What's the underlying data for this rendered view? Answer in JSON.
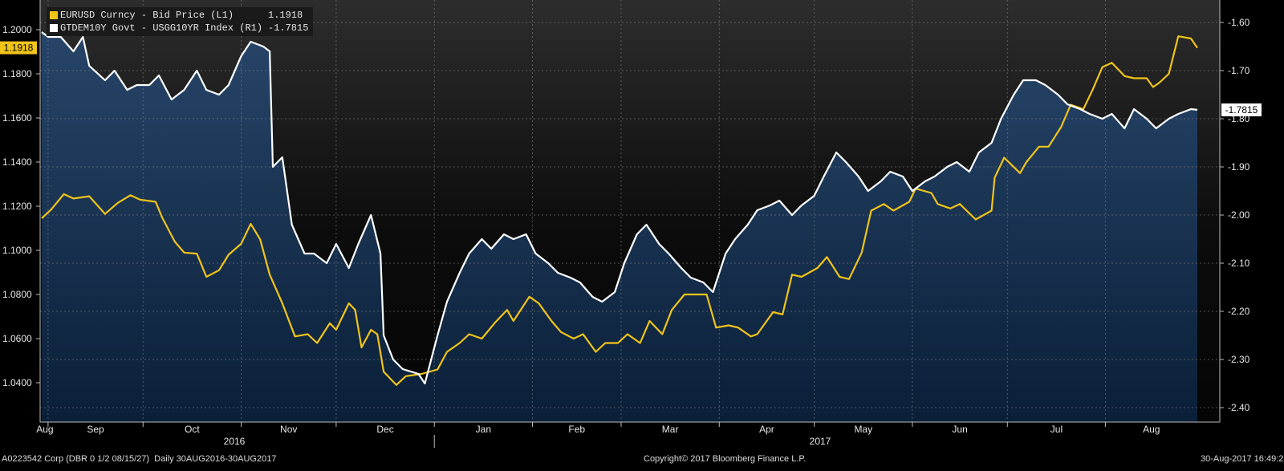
{
  "chart_data": {
    "type": "line",
    "x_start": "2016-08-30",
    "x_end": "2017-08-30",
    "month_labels": [
      "Aug",
      "Sep",
      "Oct",
      "Nov",
      "Dec",
      "Jan",
      "Feb",
      "Mar",
      "Apr",
      "May",
      "Jun",
      "Jul",
      "Aug"
    ],
    "year_labels": [
      "2016",
      "2017"
    ],
    "left_axis": {
      "ylim": [
        1.03,
        1.21
      ],
      "ticks": [
        "1.2000",
        "1.1800",
        "1.1600",
        "1.1400",
        "1.1200",
        "1.1000",
        "1.0800",
        "1.0600",
        "1.0400"
      ]
    },
    "right_axis": {
      "ylim": [
        -2.4,
        -1.55
      ],
      "ticks": [
        "-1.60",
        "-1.70",
        "-1.80",
        "-1.90",
        "-2.00",
        "-2.10",
        "-2.20",
        "-2.30",
        "-2.40"
      ]
    },
    "series": [
      {
        "name": "EURUSD Curncy - Bid Price (L1)",
        "axis": "left",
        "color": "#f0c419",
        "last_value": "1.1918",
        "points": [
          [
            "2016-08-30",
            1.1145
          ],
          [
            "2016-09-02",
            1.1185
          ],
          [
            "2016-09-06",
            1.1255
          ],
          [
            "2016-09-09",
            1.1235
          ],
          [
            "2016-09-14",
            1.1245
          ],
          [
            "2016-09-19",
            1.1165
          ],
          [
            "2016-09-23",
            1.1215
          ],
          [
            "2016-09-27",
            1.125
          ],
          [
            "2016-09-30",
            1.123
          ],
          [
            "2016-10-05",
            1.122
          ],
          [
            "2016-10-07",
            1.115
          ],
          [
            "2016-10-11",
            1.104
          ],
          [
            "2016-10-14",
            1.099
          ],
          [
            "2016-10-18",
            1.0985
          ],
          [
            "2016-10-21",
            1.088
          ],
          [
            "2016-10-25",
            1.091
          ],
          [
            "2016-10-28",
            1.098
          ],
          [
            "2016-11-01",
            1.103
          ],
          [
            "2016-11-04",
            1.112
          ],
          [
            "2016-11-07",
            1.105
          ],
          [
            "2016-11-10",
            1.089
          ],
          [
            "2016-11-14",
            1.076
          ],
          [
            "2016-11-18",
            1.061
          ],
          [
            "2016-11-22",
            1.062
          ],
          [
            "2016-11-25",
            1.058
          ],
          [
            "2016-11-29",
            1.067
          ],
          [
            "2016-12-01",
            1.064
          ],
          [
            "2016-12-05",
            1.076
          ],
          [
            "2016-12-07",
            1.073
          ],
          [
            "2016-12-09",
            1.056
          ],
          [
            "2016-12-12",
            1.064
          ],
          [
            "2016-12-14",
            1.062
          ],
          [
            "2016-12-16",
            1.045
          ],
          [
            "2016-12-20",
            1.039
          ],
          [
            "2016-12-23",
            1.043
          ],
          [
            "2016-12-28",
            1.044
          ],
          [
            "2017-01-02",
            1.046
          ],
          [
            "2017-01-05",
            1.054
          ],
          [
            "2017-01-09",
            1.058
          ],
          [
            "2017-01-12",
            1.062
          ],
          [
            "2017-01-16",
            1.06
          ],
          [
            "2017-01-20",
            1.067
          ],
          [
            "2017-01-24",
            1.073
          ],
          [
            "2017-01-26",
            1.068
          ],
          [
            "2017-01-31",
            1.079
          ],
          [
            "2017-02-03",
            1.076
          ],
          [
            "2017-02-07",
            1.068
          ],
          [
            "2017-02-10",
            1.063
          ],
          [
            "2017-02-14",
            1.06
          ],
          [
            "2017-02-17",
            1.062
          ],
          [
            "2017-02-21",
            1.054
          ],
          [
            "2017-02-24",
            1.058
          ],
          [
            "2017-02-28",
            1.058
          ],
          [
            "2017-03-03",
            1.062
          ],
          [
            "2017-03-07",
            1.058
          ],
          [
            "2017-03-10",
            1.068
          ],
          [
            "2017-03-14",
            1.062
          ],
          [
            "2017-03-17",
            1.073
          ],
          [
            "2017-03-21",
            1.08
          ],
          [
            "2017-03-24",
            1.08
          ],
          [
            "2017-03-28",
            1.08
          ],
          [
            "2017-03-31",
            1.065
          ],
          [
            "2017-04-04",
            1.066
          ],
          [
            "2017-04-07",
            1.065
          ],
          [
            "2017-04-11",
            1.061
          ],
          [
            "2017-04-13",
            1.062
          ],
          [
            "2017-04-18",
            1.072
          ],
          [
            "2017-04-21",
            1.071
          ],
          [
            "2017-04-24",
            1.089
          ],
          [
            "2017-04-27",
            1.088
          ],
          [
            "2017-05-02",
            1.092
          ],
          [
            "2017-05-05",
            1.097
          ],
          [
            "2017-05-09",
            1.088
          ],
          [
            "2017-05-12",
            1.087
          ],
          [
            "2017-05-16",
            1.099
          ],
          [
            "2017-05-19",
            1.118
          ],
          [
            "2017-05-23",
            1.121
          ],
          [
            "2017-05-26",
            1.118
          ],
          [
            "2017-05-31",
            1.122
          ],
          [
            "2017-06-02",
            1.128
          ],
          [
            "2017-06-07",
            1.126
          ],
          [
            "2017-06-09",
            1.121
          ],
          [
            "2017-06-13",
            1.119
          ],
          [
            "2017-06-16",
            1.121
          ],
          [
            "2017-06-21",
            1.114
          ],
          [
            "2017-06-26",
            1.118
          ],
          [
            "2017-06-27",
            1.133
          ],
          [
            "2017-06-30",
            1.142
          ],
          [
            "2017-07-05",
            1.135
          ],
          [
            "2017-07-07",
            1.14
          ],
          [
            "2017-07-11",
            1.147
          ],
          [
            "2017-07-14",
            1.147
          ],
          [
            "2017-07-18",
            1.156
          ],
          [
            "2017-07-21",
            1.166
          ],
          [
            "2017-07-25",
            1.164
          ],
          [
            "2017-07-28",
            1.173
          ],
          [
            "2017-07-31",
            1.183
          ],
          [
            "2017-08-03",
            1.185
          ],
          [
            "2017-08-07",
            1.179
          ],
          [
            "2017-08-10",
            1.178
          ],
          [
            "2017-08-14",
            1.178
          ],
          [
            "2017-08-16",
            1.174
          ],
          [
            "2017-08-18",
            1.176
          ],
          [
            "2017-08-21",
            1.18
          ],
          [
            "2017-08-24",
            1.197
          ],
          [
            "2017-08-28",
            1.196
          ],
          [
            "2017-08-30",
            1.1918
          ]
        ]
      },
      {
        "name": "GTDEM10Y Govt - USGG10YR Index (R1)",
        "axis": "right",
        "color": "#ffffff",
        "last_value": "-1.7815",
        "points": [
          [
            "2016-08-30",
            -1.62
          ],
          [
            "2016-09-01",
            -1.63
          ],
          [
            "2016-09-05",
            -1.63
          ],
          [
            "2016-09-09",
            -1.66
          ],
          [
            "2016-09-12",
            -1.63
          ],
          [
            "2016-09-14",
            -1.69
          ],
          [
            "2016-09-19",
            -1.72
          ],
          [
            "2016-09-22",
            -1.7
          ],
          [
            "2016-09-26",
            -1.74
          ],
          [
            "2016-09-29",
            -1.73
          ],
          [
            "2016-10-03",
            -1.73
          ],
          [
            "2016-10-06",
            -1.71
          ],
          [
            "2016-10-10",
            -1.76
          ],
          [
            "2016-10-14",
            -1.74
          ],
          [
            "2016-10-18",
            -1.7
          ],
          [
            "2016-10-21",
            -1.74
          ],
          [
            "2016-10-25",
            -1.75
          ],
          [
            "2016-10-28",
            -1.73
          ],
          [
            "2016-11-01",
            -1.67
          ],
          [
            "2016-11-04",
            -1.64
          ],
          [
            "2016-11-08",
            -1.65
          ],
          [
            "2016-11-10",
            -1.66
          ],
          [
            "2016-11-11",
            -1.9
          ],
          [
            "2016-11-14",
            -1.88
          ],
          [
            "2016-11-17",
            -2.02
          ],
          [
            "2016-11-21",
            -2.08
          ],
          [
            "2016-11-24",
            -2.08
          ],
          [
            "2016-11-28",
            -2.1
          ],
          [
            "2016-12-01",
            -2.06
          ],
          [
            "2016-12-05",
            -2.11
          ],
          [
            "2016-12-08",
            -2.06
          ],
          [
            "2016-12-12",
            -2.0
          ],
          [
            "2016-12-15",
            -2.08
          ],
          [
            "2016-12-16",
            -2.25
          ],
          [
            "2016-12-19",
            -2.3
          ],
          [
            "2016-12-22",
            -2.32
          ],
          [
            "2016-12-27",
            -2.33
          ],
          [
            "2016-12-29",
            -2.35
          ],
          [
            "2017-01-02",
            -2.25
          ],
          [
            "2017-01-05",
            -2.18
          ],
          [
            "2017-01-09",
            -2.12
          ],
          [
            "2017-01-12",
            -2.08
          ],
          [
            "2017-01-16",
            -2.05
          ],
          [
            "2017-01-19",
            -2.07
          ],
          [
            "2017-01-23",
            -2.04
          ],
          [
            "2017-01-26",
            -2.05
          ],
          [
            "2017-01-30",
            -2.04
          ],
          [
            "2017-02-02",
            -2.08
          ],
          [
            "2017-02-06",
            -2.1
          ],
          [
            "2017-02-09",
            -2.12
          ],
          [
            "2017-02-13",
            -2.13
          ],
          [
            "2017-02-16",
            -2.14
          ],
          [
            "2017-02-20",
            -2.17
          ],
          [
            "2017-02-23",
            -2.18
          ],
          [
            "2017-02-27",
            -2.16
          ],
          [
            "2017-03-02",
            -2.1
          ],
          [
            "2017-03-06",
            -2.04
          ],
          [
            "2017-03-09",
            -2.02
          ],
          [
            "2017-03-13",
            -2.06
          ],
          [
            "2017-03-16",
            -2.08
          ],
          [
            "2017-03-20",
            -2.11
          ],
          [
            "2017-03-23",
            -2.13
          ],
          [
            "2017-03-27",
            -2.14
          ],
          [
            "2017-03-30",
            -2.16
          ],
          [
            "2017-04-03",
            -2.08
          ],
          [
            "2017-04-06",
            -2.05
          ],
          [
            "2017-04-10",
            -2.02
          ],
          [
            "2017-04-13",
            -1.99
          ],
          [
            "2017-04-17",
            -1.98
          ],
          [
            "2017-04-20",
            -1.97
          ],
          [
            "2017-04-24",
            -2.0
          ],
          [
            "2017-04-27",
            -1.98
          ],
          [
            "2017-05-01",
            -1.96
          ],
          [
            "2017-05-04",
            -1.92
          ],
          [
            "2017-05-08",
            -1.87
          ],
          [
            "2017-05-11",
            -1.89
          ],
          [
            "2017-05-15",
            -1.92
          ],
          [
            "2017-05-18",
            -1.95
          ],
          [
            "2017-05-22",
            -1.93
          ],
          [
            "2017-05-25",
            -1.91
          ],
          [
            "2017-05-29",
            -1.92
          ],
          [
            "2017-06-01",
            -1.95
          ],
          [
            "2017-06-05",
            -1.93
          ],
          [
            "2017-06-08",
            -1.92
          ],
          [
            "2017-06-12",
            -1.9
          ],
          [
            "2017-06-15",
            -1.89
          ],
          [
            "2017-06-19",
            -1.91
          ],
          [
            "2017-06-22",
            -1.87
          ],
          [
            "2017-06-26",
            -1.85
          ],
          [
            "2017-06-29",
            -1.8
          ],
          [
            "2017-07-03",
            -1.75
          ],
          [
            "2017-07-06",
            -1.72
          ],
          [
            "2017-07-10",
            -1.72
          ],
          [
            "2017-07-13",
            -1.73
          ],
          [
            "2017-07-17",
            -1.75
          ],
          [
            "2017-07-20",
            -1.77
          ],
          [
            "2017-07-24",
            -1.78
          ],
          [
            "2017-07-27",
            -1.79
          ],
          [
            "2017-07-31",
            -1.8
          ],
          [
            "2017-08-03",
            -1.79
          ],
          [
            "2017-08-07",
            -1.82
          ],
          [
            "2017-08-10",
            -1.78
          ],
          [
            "2017-08-14",
            -1.8
          ],
          [
            "2017-08-17",
            -1.82
          ],
          [
            "2017-08-21",
            -1.8
          ],
          [
            "2017-08-24",
            -1.79
          ],
          [
            "2017-08-28",
            -1.78
          ],
          [
            "2017-08-30",
            -1.7815
          ]
        ]
      }
    ],
    "grid": true,
    "legend": "top-left"
  },
  "footer": {
    "left": "A0223542 Corp (DBR 0 1/2 08/15/27)  Daily 30AUG2016-30AUG2017",
    "center": "Copyright© 2017 Bloomberg Finance L.P.",
    "right": "30-Aug-2017 16:49:22"
  }
}
